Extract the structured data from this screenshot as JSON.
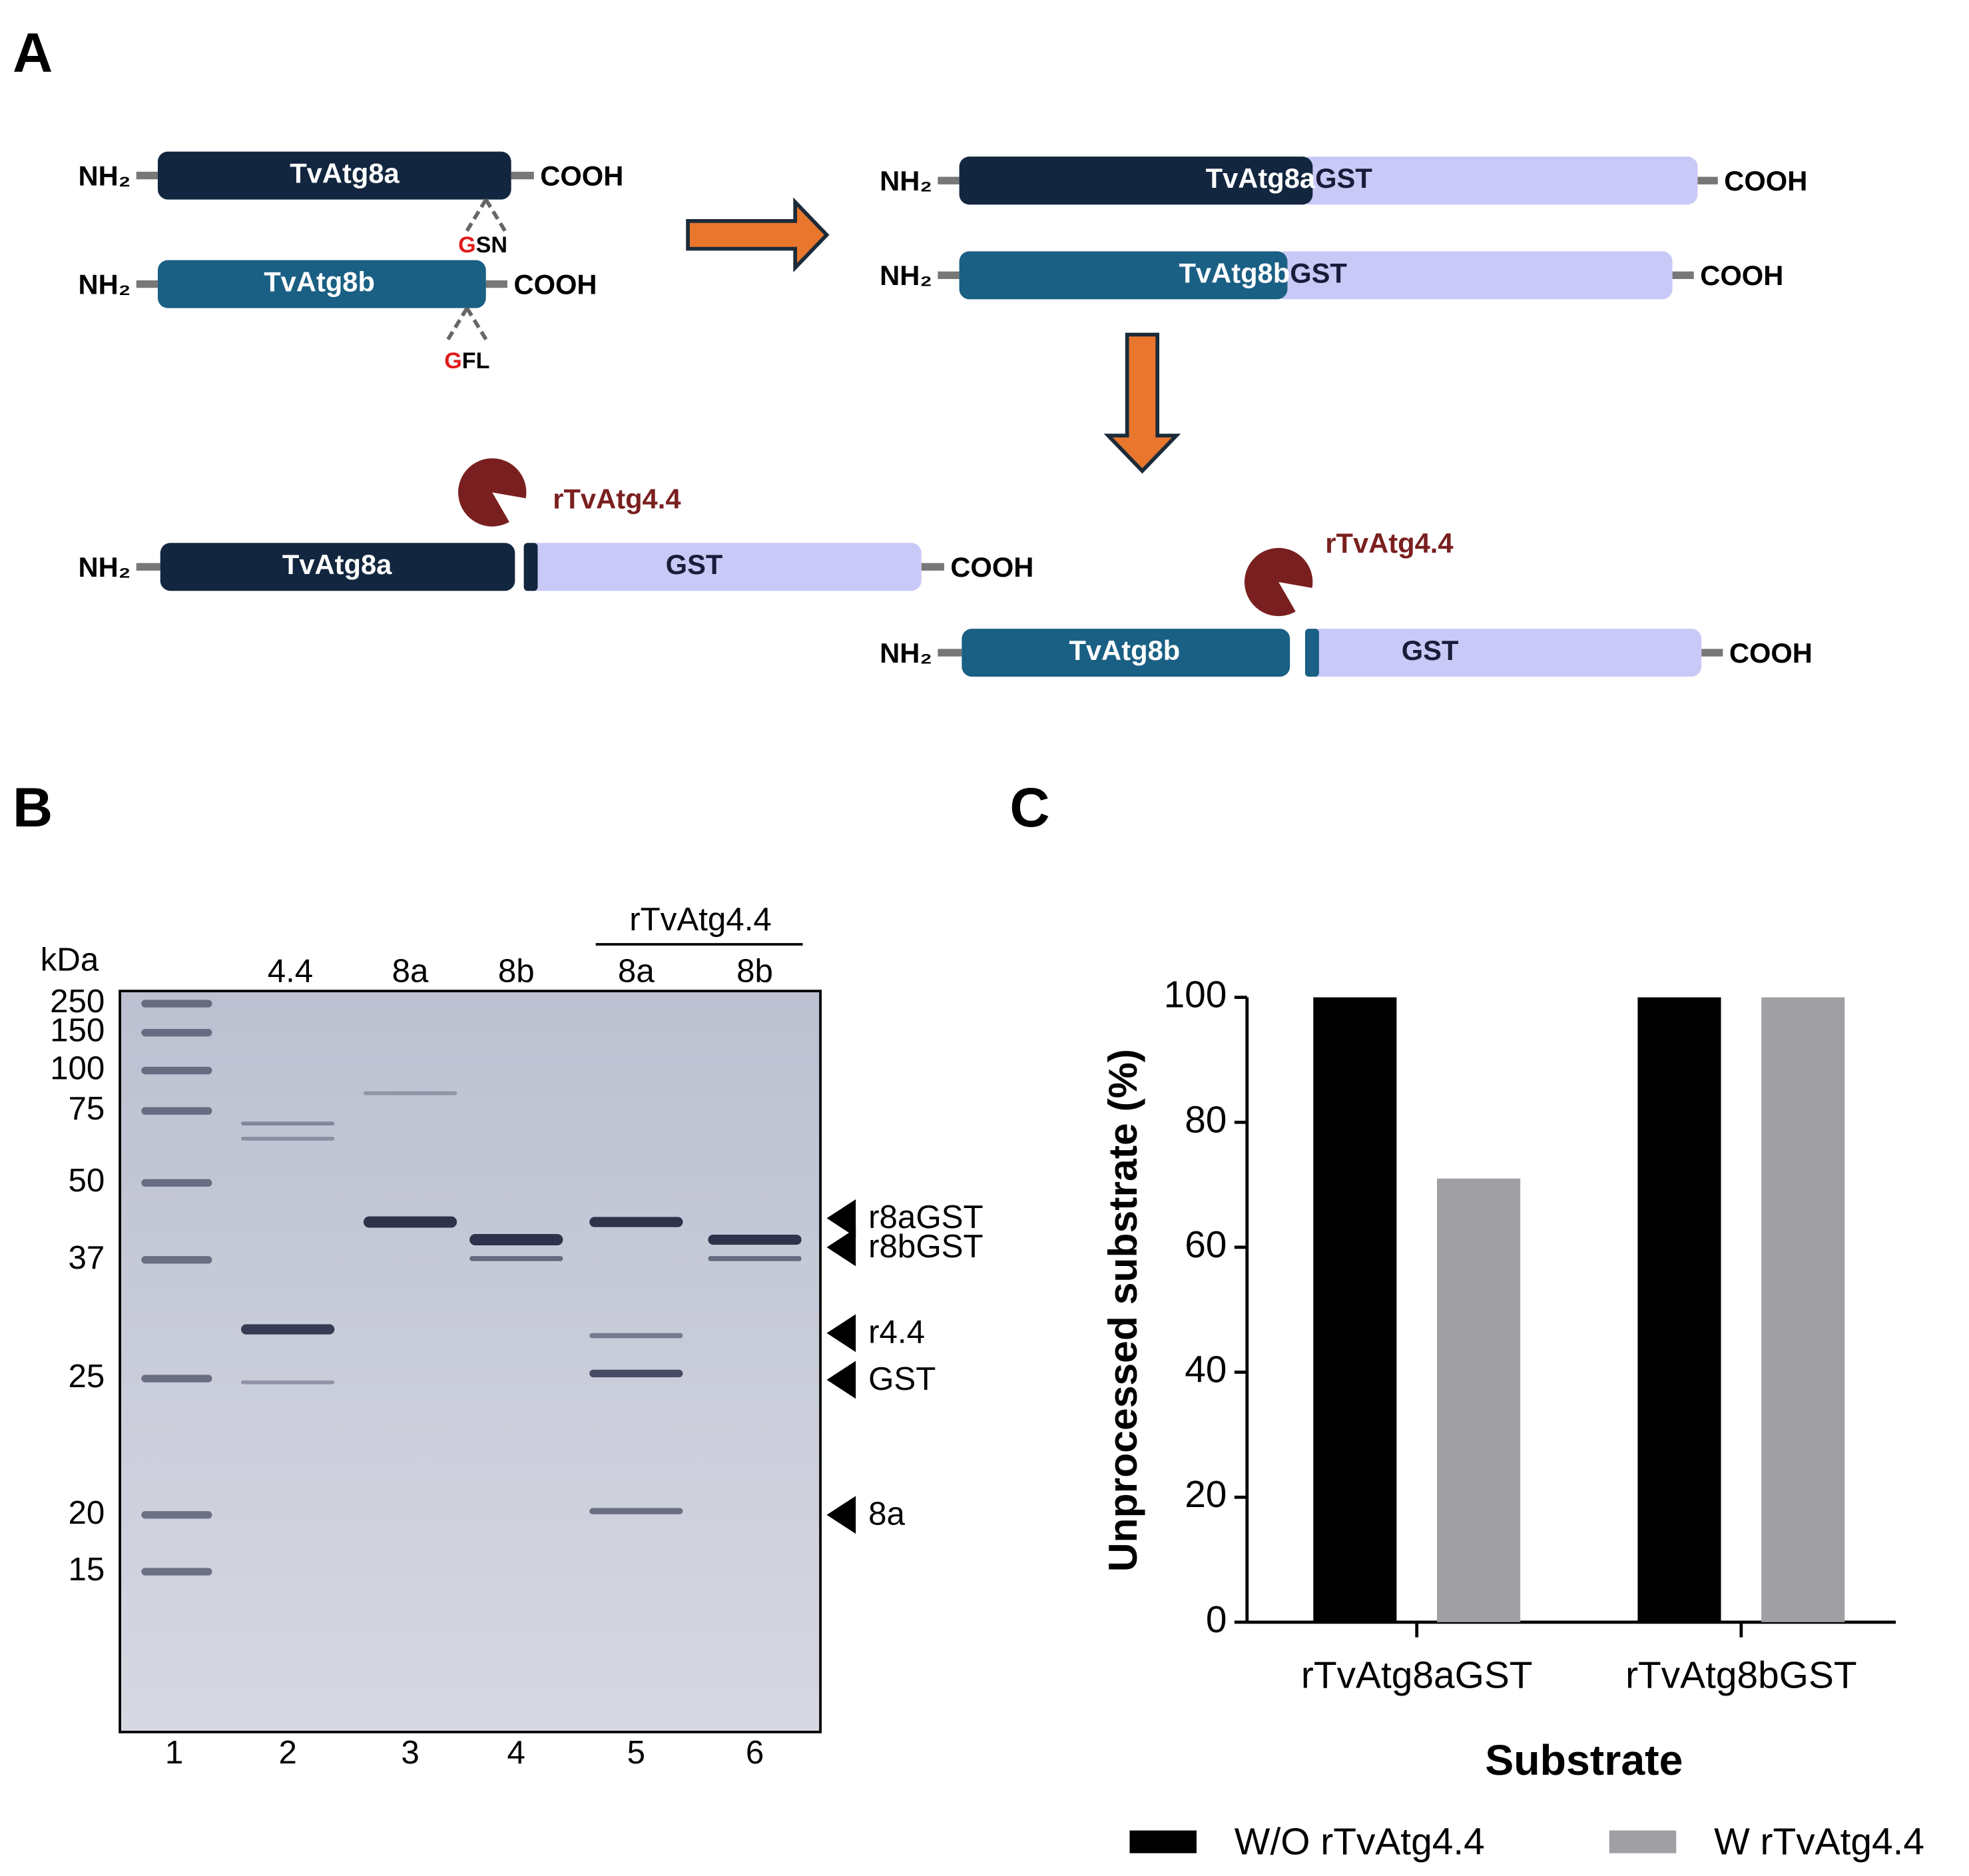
{
  "panel_a": {
    "label": "A",
    "constructs": [
      {
        "nh": "NH₂",
        "name": "TvAtg8a",
        "cooh": "COOH",
        "site_g": "G",
        "site_rest": "SN"
      },
      {
        "nh": "NH₂",
        "name": "TvAtg8b",
        "cooh": "COOH",
        "site_g": "G",
        "site_rest": "FL"
      },
      {
        "nh": "NH₂",
        "name": "TvAtg8a",
        "tag": "GST",
        "cooh": "COOH"
      },
      {
        "nh": "NH₂",
        "name": "TvAtg8b",
        "tag": "GST",
        "cooh": "COOH"
      },
      {
        "nh": "NH₂",
        "name": "TvAtg8a",
        "tag": "GST",
        "cooh": "COOH",
        "protease": "rTvAtg4.4"
      },
      {
        "nh": "NH₂",
        "name": "TvAtg8b",
        "tag": "GST",
        "cooh": "COOH",
        "protease": "rTvAtg4.4"
      }
    ]
  },
  "panel_b": {
    "label": "B",
    "unit": "kDa",
    "markers": [
      250,
      150,
      100,
      75,
      50,
      37,
      25,
      20,
      15
    ],
    "group": "rTvAtg4.4",
    "lane_headers": [
      "4.4",
      "8a",
      "8b",
      "8a",
      "8b"
    ],
    "lane_numbers": [
      1,
      2,
      3,
      4,
      5,
      6
    ],
    "band_labels": [
      "r8aGST",
      "r8bGST",
      "r4.4",
      "GST",
      "8a"
    ]
  },
  "chart_data": {
    "type": "bar",
    "panel_label": "C",
    "categories": [
      "rTvAtg8aGST",
      "rTvAtg8bGST"
    ],
    "series": [
      {
        "name": "W/O rTvAtg4.4",
        "color": "#000000",
        "values": [
          100,
          100
        ]
      },
      {
        "name": "W rTvAtg4.4",
        "color": "#a0a0a4",
        "values": [
          71,
          100
        ]
      }
    ],
    "ylim": [
      0,
      100
    ],
    "yticks": [
      0,
      20,
      40,
      60,
      80,
      100
    ],
    "y_label": "Unprocessed substrate (%)",
    "x_label": "Substrate",
    "legend": "bottom"
  }
}
